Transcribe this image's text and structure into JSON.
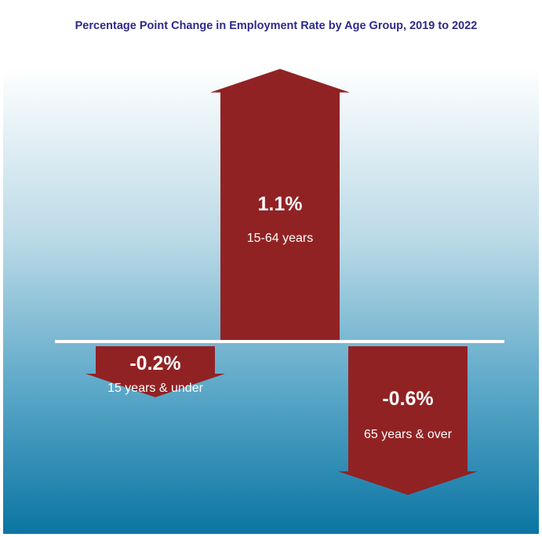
{
  "chart_data": {
    "type": "bar",
    "title": "Percentage Point Change in Employment Rate by Age Group, 2019 to 2022",
    "xlabel": "",
    "ylabel": "",
    "categories": [
      "15 years & under",
      "15-64 years",
      "65 years & over"
    ],
    "values": [
      -0.2,
      1.1,
      -0.6
    ],
    "value_labels": [
      "-0.2%",
      "1.1%",
      "-0.6%"
    ],
    "ylim": [
      -0.65,
      1.15
    ],
    "grid": false,
    "legend": "none",
    "mark_shape": "arrow"
  },
  "colors": {
    "title": "#2e2a8a",
    "arrow": "#912224",
    "baseline": "#ffffff",
    "background_top": "#ffffff",
    "background_bottom": "#0b75a3",
    "label": "#ffffff"
  }
}
